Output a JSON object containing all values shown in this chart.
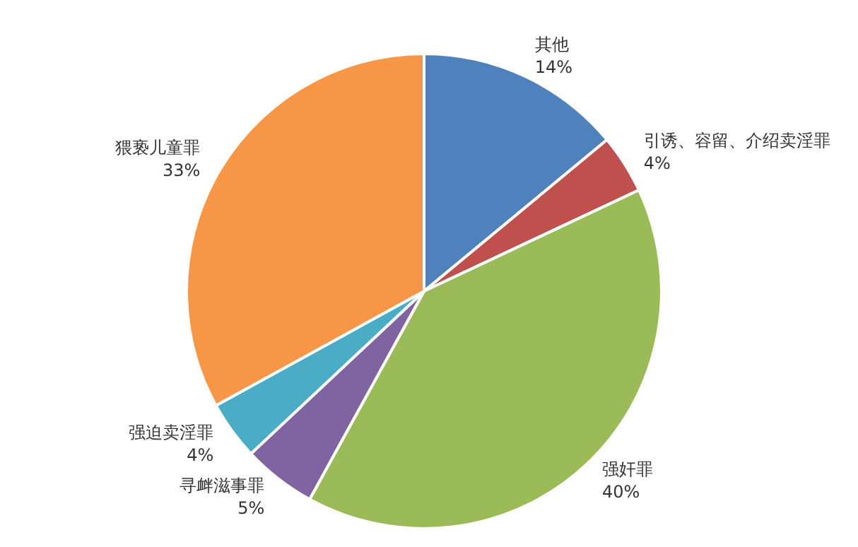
{
  "chart_data": {
    "type": "pie",
    "categories": [
      "其他",
      "引诱、容留、介绍卖淫罪",
      "强奸罪",
      "寻衅滋事罪",
      "强迫卖淫罪",
      "猥亵儿童罪"
    ],
    "values": [
      14,
      4,
      40,
      5,
      4,
      33
    ],
    "value_labels": [
      "14%",
      "4%",
      "40%",
      "5%",
      "4%",
      "33%"
    ],
    "colors": [
      "#4f81bd",
      "#c0504d",
      "#9bbb59",
      "#8064a2",
      "#4bacc6",
      "#f79646"
    ]
  }
}
